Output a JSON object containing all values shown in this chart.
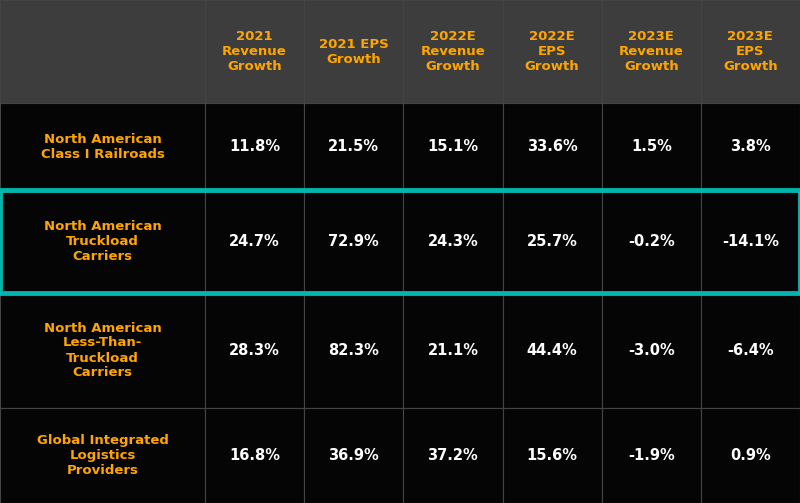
{
  "col_headers": [
    "2021\nRevenue\nGrowth",
    "2021 EPS\nGrowth",
    "2022E\nRevenue\nGrowth",
    "2022E\nEPS\nGrowth",
    "2023E\nRevenue\nGrowth",
    "2023E\nEPS\nGrowth"
  ],
  "row_labels": [
    "North American\nClass I Railroads",
    "North American\nTruckload\nCarriers",
    "North American\nLess-Than-\nTruckload\nCarriers",
    "Global Integrated\nLogistics\nProviders"
  ],
  "values": [
    [
      "11.8%",
      "21.5%",
      "15.1%",
      "33.6%",
      "1.5%",
      "3.8%"
    ],
    [
      "24.7%",
      "72.9%",
      "24.3%",
      "25.7%",
      "-0.2%",
      "-14.1%"
    ],
    [
      "28.3%",
      "82.3%",
      "21.1%",
      "44.4%",
      "-3.0%",
      "-6.4%"
    ],
    [
      "16.8%",
      "36.9%",
      "37.2%",
      "15.6%",
      "-1.9%",
      "0.9%"
    ]
  ],
  "highlighted_row": 1,
  "bg_color": "#0d0d0d",
  "header_bg": "#3d3d3d",
  "cell_bg": "#050505",
  "header_text_color": "#FFA500",
  "row_label_color": "#FFA500",
  "value_color": "#FFFFFF",
  "highlight_border_color": "#00B5AD",
  "grid_color": "#444444",
  "header_fontsize": 9.5,
  "cell_fontsize": 10.5,
  "label_fontsize": 9.5
}
